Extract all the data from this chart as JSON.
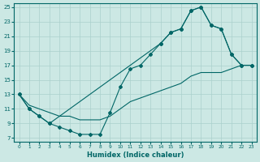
{
  "xlabel": "Humidex (Indice chaleur)",
  "xlim": [
    -0.5,
    23.5
  ],
  "ylim": [
    6.5,
    25.5
  ],
  "xticks": [
    0,
    1,
    2,
    3,
    4,
    5,
    6,
    7,
    8,
    9,
    10,
    11,
    12,
    13,
    14,
    15,
    16,
    17,
    18,
    19,
    20,
    21,
    22,
    23
  ],
  "yticks": [
    7,
    9,
    11,
    13,
    15,
    17,
    19,
    21,
    23,
    25
  ],
  "bg_color": "#cce8e4",
  "grid_color": "#aad0cc",
  "line_color": "#006666",
  "curve_dip_x": [
    0,
    1,
    2,
    3,
    4,
    5,
    6,
    7,
    8,
    9,
    10,
    11,
    12,
    13,
    14,
    15,
    16,
    17,
    18,
    19,
    20,
    21,
    22,
    23
  ],
  "curve_dip_y": [
    13,
    11,
    10,
    9,
    8.5,
    8,
    7.5,
    7.5,
    7.5,
    10.5,
    14,
    16.5,
    17,
    18.5,
    20,
    21.5,
    22,
    24.5,
    25,
    22.5,
    22,
    18.5,
    17,
    17
  ],
  "curve_upper_x": [
    0,
    1,
    2,
    3,
    14,
    15,
    16,
    17,
    18,
    19,
    20,
    21,
    22,
    23
  ],
  "curve_upper_y": [
    13,
    11,
    10,
    9,
    20,
    21.5,
    22,
    24.5,
    25,
    22.5,
    22,
    18.5,
    17,
    17
  ],
  "diag_x": [
    0,
    1,
    2,
    3,
    4,
    5,
    6,
    7,
    8,
    9,
    10,
    11,
    12,
    13,
    14,
    15,
    16,
    17,
    18,
    19,
    20,
    21,
    22,
    23
  ],
  "diag_y": [
    13,
    11.5,
    11,
    10.5,
    10,
    10,
    9.5,
    9.5,
    9.5,
    10,
    11,
    12,
    12.5,
    13,
    13.5,
    14,
    14.5,
    15.5,
    16,
    16,
    16,
    16.5,
    17,
    17
  ]
}
